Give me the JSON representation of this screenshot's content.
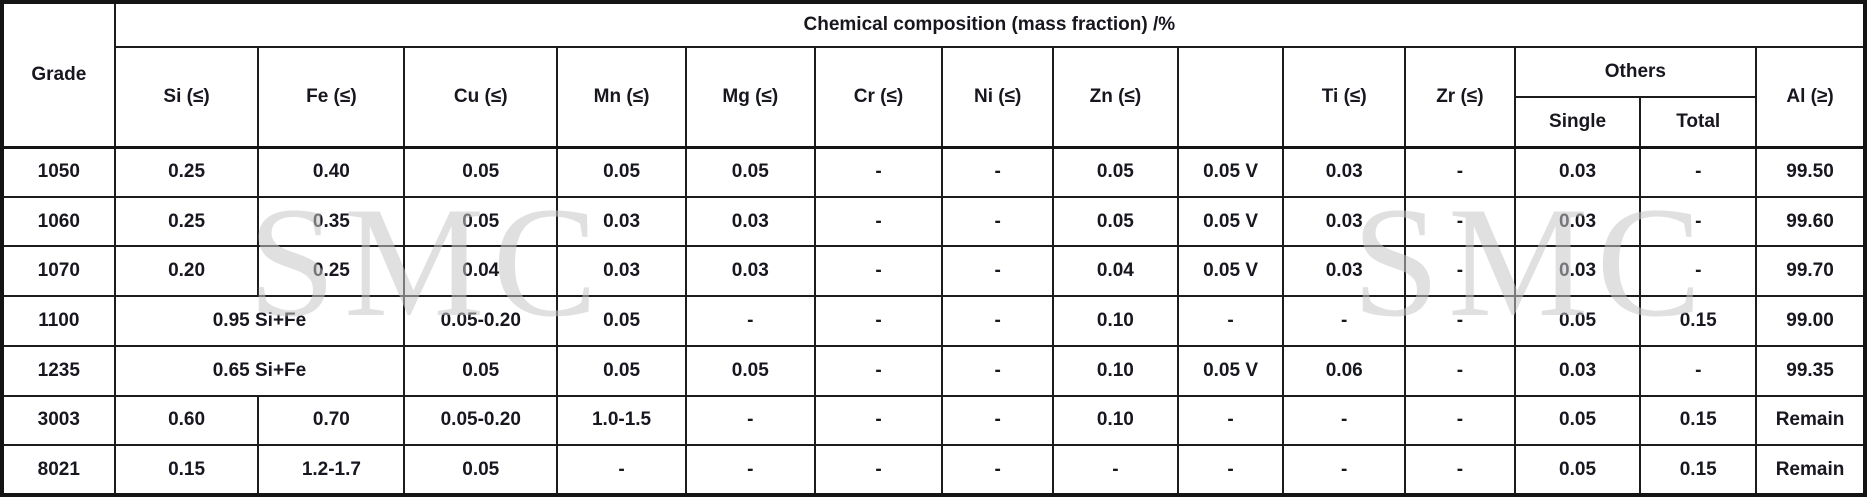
{
  "table": {
    "title": "Chemical composition (mass fraction) /%",
    "grade_header": "Grade",
    "col_headers": [
      "Si (≤)",
      "Fe (≤)",
      "Cu (≤)",
      "Mn (≤)",
      "Mg (≤)",
      "Cr (≤)",
      "Ni (≤)",
      "Zn (≤)",
      "",
      "Ti (≤)",
      "Zr (≤)"
    ],
    "others_header": "Others",
    "others_sub": [
      "Single",
      "Total"
    ],
    "al_header": "Al (≥)",
    "rows": [
      {
        "grade": "1050",
        "cells": [
          "0.25",
          "0.40",
          "0.05",
          "0.05",
          "0.05",
          "-",
          "-",
          "0.05",
          "0.05 V",
          "0.03",
          "-",
          "0.03",
          "-",
          "99.50"
        ]
      },
      {
        "grade": "1060",
        "cells": [
          "0.25",
          "0.35",
          "0.05",
          "0.03",
          "0.03",
          "-",
          "-",
          "0.05",
          "0.05 V",
          "0.03",
          "-",
          "0.03",
          "-",
          "99.60"
        ]
      },
      {
        "grade": "1070",
        "cells": [
          "0.20",
          "0.25",
          "0.04",
          "0.03",
          "0.03",
          "-",
          "-",
          "0.04",
          "0.05 V",
          "0.03",
          "-",
          "0.03",
          "-",
          "99.70"
        ]
      },
      {
        "grade": "1100",
        "si_fe": "0.95 Si+Fe",
        "cells": [
          "0.05-0.20",
          "0.05",
          "-",
          "-",
          "-",
          "0.10",
          "-",
          "-",
          "-",
          "0.05",
          "0.15",
          "99.00"
        ]
      },
      {
        "grade": "1235",
        "si_fe": "0.65 Si+Fe",
        "cells": [
          "0.05",
          "0.05",
          "0.05",
          "-",
          "-",
          "0.10",
          "0.05 V",
          "0.06",
          "-",
          "0.03",
          "-",
          "99.35"
        ]
      },
      {
        "grade": "3003",
        "cells": [
          "0.60",
          "0.70",
          "0.05-0.20",
          "1.0-1.5",
          "-",
          "-",
          "-",
          "0.10",
          "-",
          "-",
          "-",
          "0.05",
          "0.15",
          "Remain"
        ]
      },
      {
        "grade": "8021",
        "cells": [
          "0.15",
          "1.2-1.7",
          "0.05",
          "-",
          "-",
          "-",
          "-",
          "-",
          "-",
          "-",
          "-",
          "0.05",
          "0.15",
          "Remain"
        ]
      }
    ]
  },
  "watermark": {
    "text": "SMC",
    "color": "#c7c7c7"
  }
}
